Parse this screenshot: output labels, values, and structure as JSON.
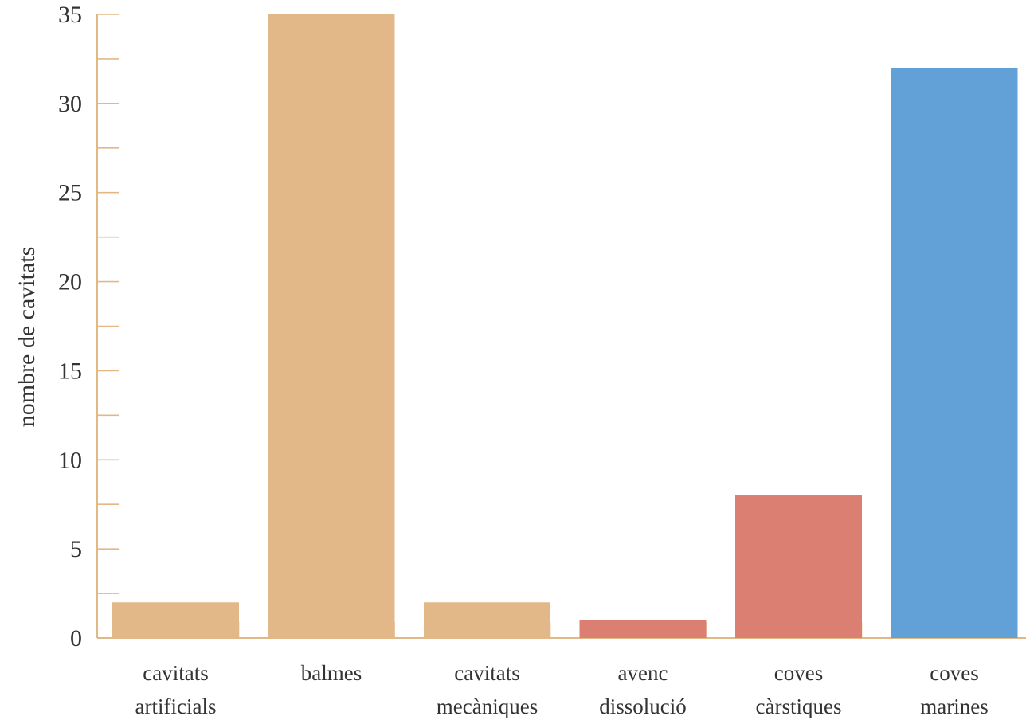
{
  "chart_data": {
    "type": "bar",
    "title": "",
    "ylabel": "nombre de cavitats",
    "xlabel": "",
    "ylim": [
      0,
      35
    ],
    "y_major_ticks": [
      0,
      5,
      10,
      15,
      20,
      25,
      30,
      35
    ],
    "y_minor_step": 2.5,
    "grid": false,
    "categories": [
      [
        "cavitats",
        "artificials"
      ],
      [
        "balmes"
      ],
      [
        "cavitats",
        "mecàniques"
      ],
      [
        "avenc",
        "dissolució"
      ],
      [
        "coves",
        "càrstiques"
      ],
      [
        "coves",
        "marines"
      ]
    ],
    "values": [
      2,
      35,
      2,
      1,
      8,
      32
    ],
    "colors": [
      "#e2b888",
      "#e2b888",
      "#e2b888",
      "#dc7f73",
      "#dc7f73",
      "#62a1d7"
    ],
    "axis_color": "#e3b887"
  }
}
